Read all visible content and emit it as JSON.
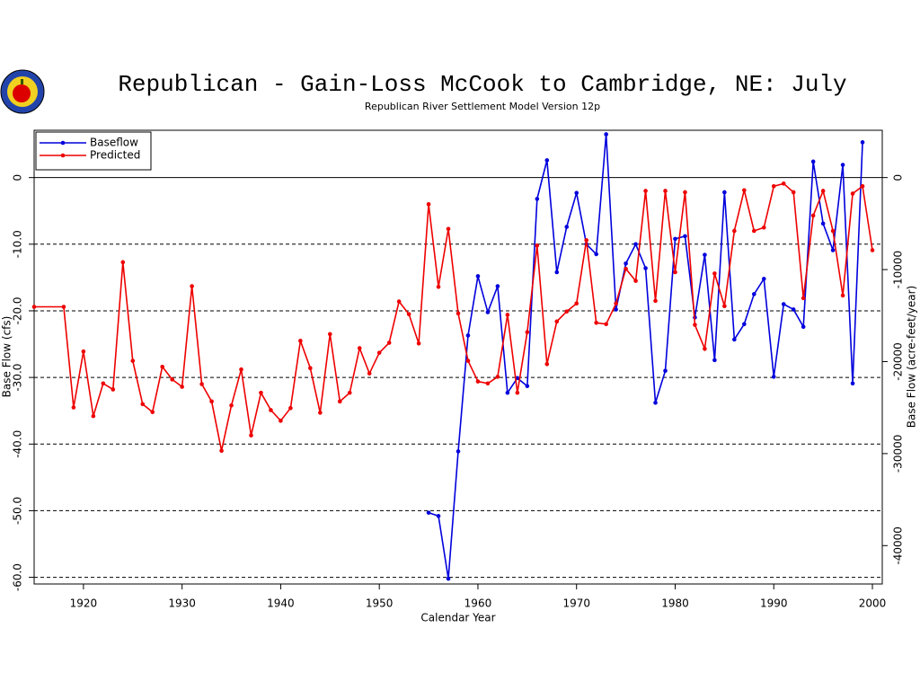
{
  "chart_data": {
    "type": "line",
    "title": "Republican - Gain-Loss McCook to Cambridge, NE: July",
    "subtitle": "Republican River Settlement Model Version 12p",
    "x_label": "Calendar Year",
    "y_label": "Base Flow (cfs)",
    "y2_label": "Base Flow (acre-feet/year)",
    "xlim": [
      1915,
      2001
    ],
    "xticks": [
      1920,
      1930,
      1940,
      1950,
      1960,
      1970,
      1980,
      1990,
      2000
    ],
    "ylim": [
      -61,
      7.1
    ],
    "yticks": [
      0,
      {
        "value": -10,
        "label": "-10.0"
      },
      {
        "value": -20,
        "label": "-20.0"
      },
      {
        "value": -30,
        "label": "-30.0"
      },
      {
        "value": -40,
        "label": "-40.0"
      },
      {
        "value": -50,
        "label": "-50.0"
      },
      {
        "value": -60,
        "label": "-60.0"
      }
    ],
    "y2lim": [
      -44170,
      5140
    ],
    "y2ticks": [
      0,
      -10000,
      -20000,
      -30000,
      -40000
    ],
    "grid": true,
    "legend": "upper left",
    "series": [
      {
        "name": "Baseflow",
        "color": "#0000dd",
        "x": [
          1955,
          1956,
          1957,
          1958,
          1959,
          1960,
          1961,
          1962,
          1963,
          1964,
          1965,
          1966,
          1967,
          1968,
          1969,
          1970,
          1971,
          1972,
          1973,
          1974,
          1975,
          1976,
          1977,
          1978,
          1979,
          1980,
          1981,
          1982,
          1983,
          1984,
          1985,
          1986,
          1987,
          1988,
          1989,
          1990,
          1991,
          1992,
          1993,
          1994,
          1995,
          1996,
          1997,
          1998,
          1999
        ],
        "values": [
          -50.3,
          -50.8,
          -60.2,
          -41.1,
          -23.7,
          -14.8,
          -20.2,
          -16.3,
          -32.3,
          -30.1,
          -31.3,
          -3.2,
          2.6,
          -14.2,
          -7.4,
          -2.3,
          -10.0,
          -11.5,
          6.5,
          -19.8,
          -12.9,
          -10.0,
          -13.6,
          -33.8,
          -29.0,
          -9.2,
          -8.8,
          -21.0,
          -11.6,
          -27.4,
          -2.2,
          -24.3,
          -22.0,
          -17.5,
          -15.2,
          -29.9,
          -19.0,
          -19.8,
          -22.4,
          2.4,
          -6.9,
          -10.9,
          1.9,
          -30.9,
          5.3
        ]
      },
      {
        "name": "Predicted",
        "color": "#ee0000",
        "x": [
          1915,
          1918,
          1919,
          1920,
          1921,
          1922,
          1923,
          1924,
          1925,
          1926,
          1927,
          1928,
          1929,
          1930,
          1931,
          1932,
          1933,
          1934,
          1935,
          1936,
          1937,
          1938,
          1939,
          1940,
          1941,
          1942,
          1943,
          1944,
          1945,
          1946,
          1947,
          1948,
          1949,
          1950,
          1951,
          1952,
          1953,
          1954,
          1955,
          1956,
          1957,
          1958,
          1959,
          1960,
          1961,
          1962,
          1963,
          1964,
          1965,
          1966,
          1967,
          1968,
          1969,
          1970,
          1971,
          1972,
          1973,
          1974,
          1975,
          1976,
          1977,
          1978,
          1979,
          1980,
          1981,
          1982,
          1983,
          1984,
          1985,
          1986,
          1987,
          1988,
          1989,
          1990,
          1991,
          1992,
          1993,
          1994,
          1995,
          1996,
          1997,
          1998,
          1999,
          2000
        ],
        "values": [
          -19.4,
          -19.4,
          -34.5,
          -26.1,
          -35.8,
          -30.9,
          -31.8,
          -12.7,
          -27.5,
          -34.0,
          -35.2,
          -28.4,
          -30.3,
          -31.4,
          -16.3,
          -31.0,
          -33.6,
          -41.0,
          -34.2,
          -28.8,
          -38.7,
          -32.3,
          -34.9,
          -36.5,
          -34.6,
          -24.5,
          -28.6,
          -35.3,
          -23.5,
          -33.6,
          -32.3,
          -25.6,
          -29.4,
          -26.3,
          -24.8,
          -18.6,
          -20.5,
          -24.9,
          -4.0,
          -16.4,
          -7.7,
          -20.4,
          -27.5,
          -30.6,
          -30.9,
          -29.9,
          -20.6,
          -32.3,
          -23.2,
          -10.2,
          -28.0,
          -21.6,
          -20.1,
          -18.9,
          -9.4,
          -21.8,
          -22.0,
          -18.9,
          -13.7,
          -15.5,
          -2.0,
          -18.5,
          -2.0,
          -14.2,
          -2.2,
          -22.1,
          -25.7,
          -14.4,
          -19.3,
          -8.0,
          -1.9,
          -8.0,
          -7.5,
          -1.3,
          -0.9,
          -2.2,
          -18.1,
          -5.7,
          -2.0,
          -8.0,
          -17.7,
          -2.4,
          -1.3,
          -10.9
        ]
      }
    ]
  }
}
